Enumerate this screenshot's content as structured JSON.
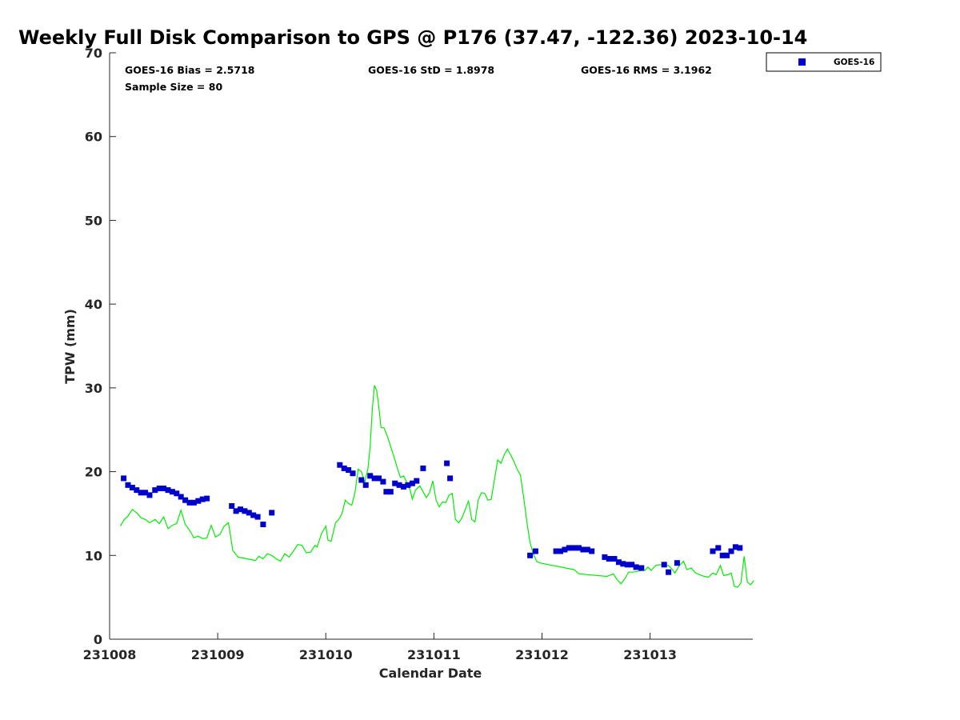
{
  "chart_data": {
    "type": "scatter",
    "title": "Weekly Full Disk Comparison to GPS @ P176 (37.47, -122.36) 2023-10-14",
    "xlabel": "Calendar Date",
    "ylabel": "TPW (mm)",
    "xlim": [
      0,
      5.95
    ],
    "ylim": [
      0,
      70
    ],
    "x_ticks": [
      {
        "value": 0,
        "label": "231008"
      },
      {
        "value": 1,
        "label": "231009"
      },
      {
        "value": 2,
        "label": "231010"
      },
      {
        "value": 3,
        "label": "231011"
      },
      {
        "value": 4,
        "label": "231012"
      },
      {
        "value": 5,
        "label": "231013"
      }
    ],
    "y_ticks": [
      0,
      10,
      20,
      30,
      40,
      50,
      60,
      70
    ],
    "grid": false,
    "legend": {
      "position": "top-right-outside",
      "entries": [
        {
          "name": "GOES-16",
          "marker": "square",
          "color": "#0000cc"
        }
      ]
    },
    "stats": {
      "bias": "GOES-16 Bias = 2.5718",
      "std": "GOES-16 StD = 1.8978",
      "rms": "GOES-16 RMS = 3.1962",
      "sample_size": "Sample Size = 80"
    },
    "series": [
      {
        "name": "GOES-16",
        "type": "scatter",
        "marker": "square",
        "color": "#0000cc",
        "points": [
          [
            0.13,
            19.2
          ],
          [
            0.17,
            18.4
          ],
          [
            0.21,
            18.1
          ],
          [
            0.25,
            17.8
          ],
          [
            0.29,
            17.5
          ],
          [
            0.33,
            17.5
          ],
          [
            0.37,
            17.2
          ],
          [
            0.42,
            17.8
          ],
          [
            0.46,
            18.0
          ],
          [
            0.5,
            18.0
          ],
          [
            0.54,
            17.8
          ],
          [
            0.58,
            17.6
          ],
          [
            0.62,
            17.4
          ],
          [
            0.66,
            17.0
          ],
          [
            0.7,
            16.6
          ],
          [
            0.74,
            16.3
          ],
          [
            0.78,
            16.3
          ],
          [
            0.82,
            16.5
          ],
          [
            0.86,
            16.7
          ],
          [
            0.9,
            16.8
          ],
          [
            1.13,
            15.9
          ],
          [
            1.17,
            15.3
          ],
          [
            1.21,
            15.5
          ],
          [
            1.25,
            15.3
          ],
          [
            1.29,
            15.1
          ],
          [
            1.33,
            14.8
          ],
          [
            1.37,
            14.6
          ],
          [
            1.42,
            13.7
          ],
          [
            1.5,
            15.1
          ],
          [
            2.13,
            20.8
          ],
          [
            2.17,
            20.4
          ],
          [
            2.21,
            20.2
          ],
          [
            2.25,
            19.8
          ],
          [
            2.33,
            19.0
          ],
          [
            2.37,
            18.4
          ],
          [
            2.41,
            19.5
          ],
          [
            2.45,
            19.2
          ],
          [
            2.49,
            19.2
          ],
          [
            2.53,
            18.8
          ],
          [
            2.56,
            17.6
          ],
          [
            2.6,
            17.6
          ],
          [
            2.64,
            18.6
          ],
          [
            2.68,
            18.4
          ],
          [
            2.72,
            18.2
          ],
          [
            2.76,
            18.4
          ],
          [
            2.8,
            18.6
          ],
          [
            2.84,
            18.9
          ],
          [
            2.9,
            20.4
          ],
          [
            3.12,
            21.0
          ],
          [
            3.15,
            19.2
          ],
          [
            3.89,
            10.0
          ],
          [
            3.94,
            10.5
          ],
          [
            4.13,
            10.5
          ],
          [
            4.17,
            10.5
          ],
          [
            4.21,
            10.7
          ],
          [
            4.25,
            10.9
          ],
          [
            4.29,
            10.9
          ],
          [
            4.34,
            10.9
          ],
          [
            4.38,
            10.7
          ],
          [
            4.42,
            10.7
          ],
          [
            4.46,
            10.5
          ],
          [
            4.58,
            9.8
          ],
          [
            4.62,
            9.6
          ],
          [
            4.67,
            9.6
          ],
          [
            4.71,
            9.2
          ],
          [
            4.75,
            9.0
          ],
          [
            4.79,
            8.9
          ],
          [
            4.83,
            8.9
          ],
          [
            4.87,
            8.6
          ],
          [
            4.92,
            8.5
          ],
          [
            5.13,
            8.9
          ],
          [
            5.17,
            8.0
          ],
          [
            5.25,
            9.1
          ],
          [
            5.58,
            10.5
          ],
          [
            5.63,
            10.9
          ],
          [
            5.67,
            10.0
          ],
          [
            5.71,
            10.0
          ],
          [
            5.75,
            10.5
          ],
          [
            5.79,
            11.0
          ],
          [
            5.83,
            10.9
          ]
        ]
      },
      {
        "name": "GPS",
        "type": "line",
        "color": "#00ee00",
        "segments": [
          [
            [
              0.1,
              13.5
            ],
            [
              0.13,
              14.2
            ],
            [
              0.17,
              14.7
            ],
            [
              0.21,
              15.5
            ],
            [
              0.25,
              15.1
            ],
            [
              0.29,
              14.5
            ],
            [
              0.33,
              14.3
            ],
            [
              0.37,
              13.9
            ],
            [
              0.42,
              14.3
            ],
            [
              0.46,
              13.8
            ],
            [
              0.5,
              14.6
            ],
            [
              0.54,
              13.2
            ],
            [
              0.58,
              13.6
            ],
            [
              0.62,
              13.8
            ],
            [
              0.66,
              15.4
            ],
            [
              0.7,
              13.7
            ],
            [
              0.74,
              13.0
            ],
            [
              0.78,
              12.1
            ],
            [
              0.82,
              12.3
            ],
            [
              0.86,
              12.0
            ],
            [
              0.9,
              12.1
            ],
            [
              0.94,
              13.6
            ],
            [
              0.98,
              12.2
            ],
            [
              1.02,
              12.5
            ],
            [
              1.06,
              13.5
            ],
            [
              1.1,
              13.9
            ],
            [
              1.14,
              10.6
            ],
            [
              1.19,
              9.8
            ],
            [
              1.23,
              9.7
            ],
            [
              1.27,
              9.6
            ],
            [
              1.31,
              9.5
            ],
            [
              1.35,
              9.4
            ],
            [
              1.38,
              9.9
            ],
            [
              1.42,
              9.6
            ],
            [
              1.46,
              10.2
            ],
            [
              1.5,
              10.0
            ],
            [
              1.54,
              9.6
            ],
            [
              1.58,
              9.3
            ],
            [
              1.62,
              10.2
            ],
            [
              1.66,
              9.8
            ],
            [
              1.7,
              10.5
            ],
            [
              1.74,
              11.3
            ],
            [
              1.78,
              11.2
            ],
            [
              1.82,
              10.3
            ],
            [
              1.86,
              10.4
            ],
            [
              1.9,
              11.2
            ],
            [
              1.92,
              11.0
            ],
            [
              1.96,
              12.6
            ],
            [
              2.0,
              13.5
            ],
            [
              2.02,
              11.8
            ],
            [
              2.05,
              11.7
            ],
            [
              2.09,
              13.9
            ],
            [
              2.12,
              14.3
            ],
            [
              2.15,
              15.0
            ],
            [
              2.18,
              16.6
            ],
            [
              2.21,
              16.2
            ],
            [
              2.24,
              16.0
            ],
            [
              2.27,
              17.5
            ],
            [
              2.3,
              20.3
            ],
            [
              2.33,
              20.0
            ],
            [
              2.36,
              18.7
            ],
            [
              2.39,
              20.4
            ],
            [
              2.41,
              23.0
            ],
            [
              2.43,
              27.5
            ],
            [
              2.45,
              30.3
            ],
            [
              2.47,
              29.7
            ],
            [
              2.49,
              27.8
            ],
            [
              2.51,
              25.3
            ],
            [
              2.54,
              25.2
            ],
            [
              2.57,
              24.2
            ],
            [
              2.6,
              23.0
            ],
            [
              2.63,
              21.8
            ],
            [
              2.66,
              20.5
            ],
            [
              2.69,
              19.3
            ],
            [
              2.72,
              19.5
            ],
            [
              2.75,
              18.7
            ],
            [
              2.78,
              17.8
            ],
            [
              2.8,
              16.7
            ],
            [
              2.83,
              17.8
            ],
            [
              2.87,
              18.3
            ],
            [
              2.9,
              17.6
            ],
            [
              2.93,
              16.9
            ],
            [
              2.96,
              17.5
            ],
            [
              2.99,
              18.9
            ],
            [
              3.02,
              16.6
            ],
            [
              3.05,
              15.8
            ],
            [
              3.08,
              16.4
            ],
            [
              3.11,
              16.3
            ],
            [
              3.14,
              17.2
            ],
            [
              3.17,
              17.4
            ],
            [
              3.2,
              14.3
            ],
            [
              3.23,
              13.9
            ],
            [
              3.26,
              14.5
            ],
            [
              3.29,
              15.5
            ],
            [
              3.32,
              16.5
            ],
            [
              3.35,
              14.3
            ],
            [
              3.38,
              14.0
            ],
            [
              3.41,
              16.6
            ],
            [
              3.44,
              17.5
            ],
            [
              3.47,
              17.4
            ],
            [
              3.5,
              16.6
            ],
            [
              3.53,
              16.7
            ],
            [
              3.56,
              19.0
            ],
            [
              3.59,
              21.4
            ],
            [
              3.62,
              21.0
            ],
            [
              3.65,
              22.0
            ],
            [
              3.68,
              22.7
            ],
            [
              3.71,
              22.0
            ],
            [
              3.74,
              21.2
            ],
            [
              3.77,
              20.3
            ],
            [
              3.8,
              19.6
            ],
            [
              3.83,
              17.0
            ],
            [
              3.86,
              14.0
            ],
            [
              3.89,
              11.5
            ],
            [
              3.92,
              10.2
            ],
            [
              3.95,
              9.3
            ],
            [
              3.98,
              9.1
            ],
            [
              4.3,
              8.3
            ],
            [
              4.34,
              7.8
            ],
            [
              4.6,
              7.5
            ],
            [
              4.66,
              7.8
            ],
            [
              4.69,
              7.2
            ],
            [
              4.73,
              6.6
            ],
            [
              4.77,
              7.3
            ],
            [
              4.8,
              8.0
            ],
            [
              4.84,
              8.0
            ],
            [
              4.88,
              8.1
            ],
            [
              4.92,
              8.2
            ],
            [
              4.95,
              8.2
            ],
            [
              4.98,
              8.6
            ],
            [
              5.01,
              8.2
            ],
            [
              5.05,
              8.8
            ],
            [
              5.09,
              8.9
            ],
            [
              5.13,
              8.8
            ],
            [
              5.17,
              8.8
            ],
            [
              5.2,
              8.4
            ],
            [
              5.23,
              7.9
            ],
            [
              5.27,
              8.8
            ],
            [
              5.31,
              9.3
            ],
            [
              5.34,
              8.3
            ],
            [
              5.38,
              8.5
            ],
            [
              5.42,
              7.9
            ],
            [
              5.46,
              7.7
            ],
            [
              5.5,
              7.5
            ],
            [
              5.54,
              7.4
            ],
            [
              5.58,
              7.9
            ],
            [
              5.61,
              7.7
            ],
            [
              5.65,
              8.8
            ],
            [
              5.68,
              7.6
            ],
            [
              5.72,
              7.7
            ],
            [
              5.75,
              7.9
            ],
            [
              5.78,
              6.3
            ],
            [
              5.81,
              6.2
            ],
            [
              5.84,
              6.7
            ],
            [
              5.87,
              9.9
            ],
            [
              5.9,
              6.8
            ],
            [
              5.93,
              6.5
            ],
            [
              5.96,
              7.0
            ]
          ]
        ]
      }
    ]
  }
}
